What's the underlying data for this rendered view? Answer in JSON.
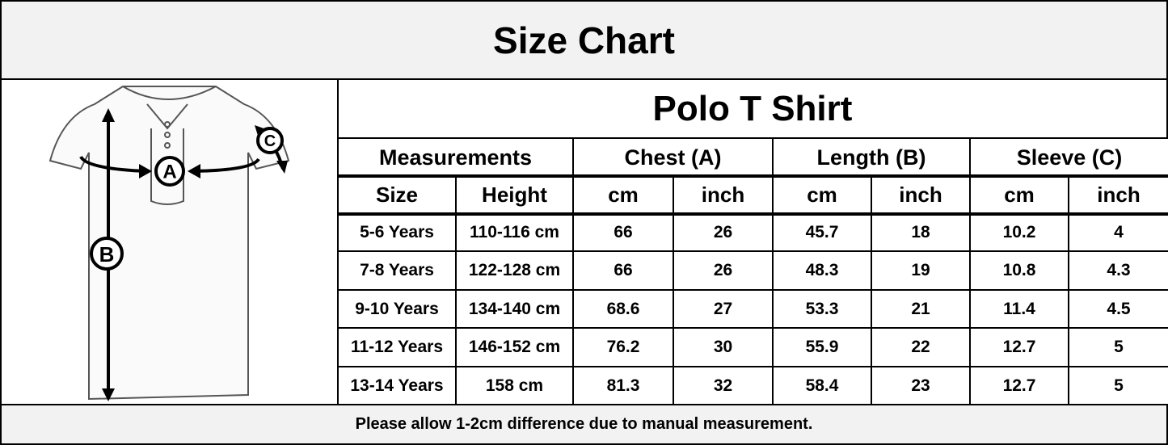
{
  "header": {
    "title": "Size Chart"
  },
  "figure": {
    "labels": [
      "A",
      "B",
      "C"
    ]
  },
  "table": {
    "title": "Polo T Shirt",
    "group_headers": [
      "Measurements",
      "Chest (A)",
      "Length (B)",
      "Sleeve (C)"
    ],
    "columns": [
      "Size",
      "Height",
      "cm",
      "inch",
      "cm",
      "inch",
      "cm",
      "inch"
    ],
    "rows": [
      [
        "5-6 Years",
        "110-116 cm",
        66,
        26,
        45.7,
        18,
        10.2,
        4
      ],
      [
        "7-8 Years",
        "122-128 cm",
        66,
        26,
        48.3,
        19,
        10.8,
        4.3
      ],
      [
        "9-10 Years",
        "134-140 cm",
        68.6,
        27,
        53.3,
        21,
        11.4,
        4.5
      ],
      [
        "11-12 Years",
        "146-152 cm",
        76.2,
        30,
        55.9,
        22,
        12.7,
        5
      ],
      [
        "13-14 Years",
        "158 cm",
        81.3,
        32,
        58.4,
        23,
        12.7,
        5
      ]
    ]
  },
  "footer": {
    "note": "Please allow 1-2cm difference due to manual measurement."
  }
}
